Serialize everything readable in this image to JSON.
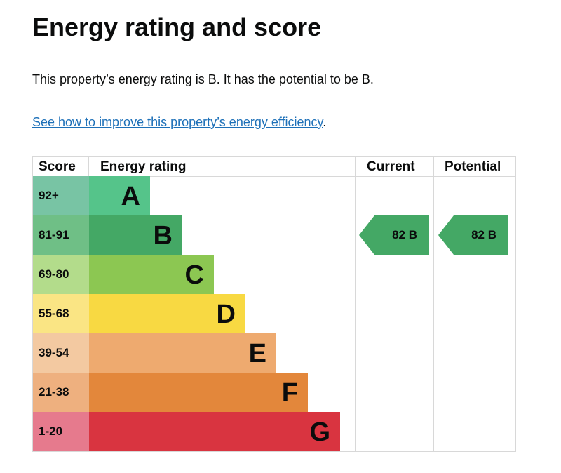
{
  "title": "Energy rating and score",
  "intro": "This property’s energy rating is B. It has the potential to be B.",
  "link_text": "See how to improve this property’s energy efficiency",
  "link_suffix": ".",
  "headers": {
    "score": "Score",
    "rating": "Energy rating",
    "current": "Current",
    "potential": "Potential"
  },
  "bands": [
    {
      "score": "92+",
      "letter": "A",
      "color": "#55c48a",
      "score_color": "#78c4a4"
    },
    {
      "score": "81-91",
      "letter": "B",
      "color": "#44a865",
      "score_color": "#6fbf86"
    },
    {
      "score": "69-80",
      "letter": "C",
      "color": "#8cc752",
      "score_color": "#b3dc8b"
    },
    {
      "score": "55-68",
      "letter": "D",
      "color": "#f8d942",
      "score_color": "#fae584"
    },
    {
      "score": "39-54",
      "letter": "E",
      "color": "#eeaa6f",
      "score_color": "#f3c9a1"
    },
    {
      "score": "21-38",
      "letter": "F",
      "color": "#e3873b",
      "score_color": "#eeb07f"
    },
    {
      "score": "1-20",
      "letter": "G",
      "color": "#d93440",
      "score_color": "#e67a8d"
    }
  ],
  "current": {
    "label": "82 B",
    "band": "B",
    "color": "#44a865"
  },
  "potential": {
    "label": "82 B",
    "band": "B",
    "color": "#44a865"
  }
}
